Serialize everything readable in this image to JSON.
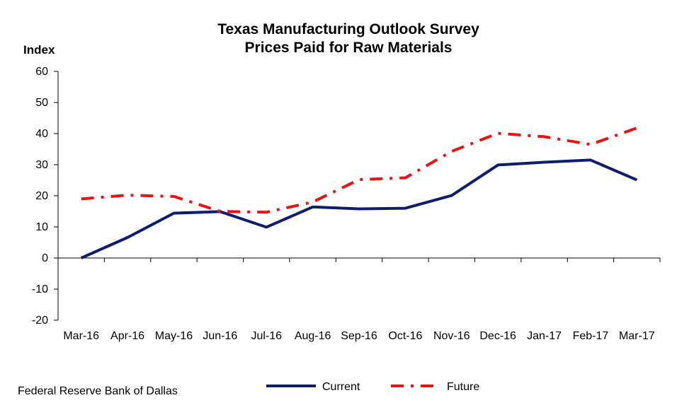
{
  "chart_data": {
    "type": "line",
    "title": "Texas Manufacturing Outlook Survey",
    "subtitle": "Prices Paid for Raw Materials",
    "ylabel": "Index",
    "xlabel": "",
    "ylim": [
      -20,
      60
    ],
    "yticks": [
      -20,
      -10,
      0,
      10,
      20,
      30,
      40,
      50,
      60
    ],
    "categories": [
      "Mar-16",
      "Apr-16",
      "May-16",
      "Jun-16",
      "Jul-16",
      "Aug-16",
      "Sep-16",
      "Oct-16",
      "Nov-16",
      "Dec-16",
      "Jan-17",
      "Feb-17",
      "Mar-17"
    ],
    "grid": false,
    "legend_position": "bottom",
    "series": [
      {
        "name": "Current",
        "color": "#0c1e6e",
        "style": "solid",
        "values": [
          0.0,
          6.6,
          14.4,
          14.9,
          9.9,
          16.4,
          15.8,
          16.0,
          20.1,
          29.9,
          30.8,
          31.5,
          25.1
        ]
      },
      {
        "name": "Future",
        "color": "#ee1111",
        "style": "dash-dot",
        "values": [
          19.0,
          20.2,
          19.8,
          15.0,
          14.7,
          18.0,
          25.2,
          25.8,
          34.3,
          40.1,
          39.0,
          36.5,
          41.8
        ]
      }
    ]
  },
  "source": "Federal Reserve Bank of Dallas"
}
